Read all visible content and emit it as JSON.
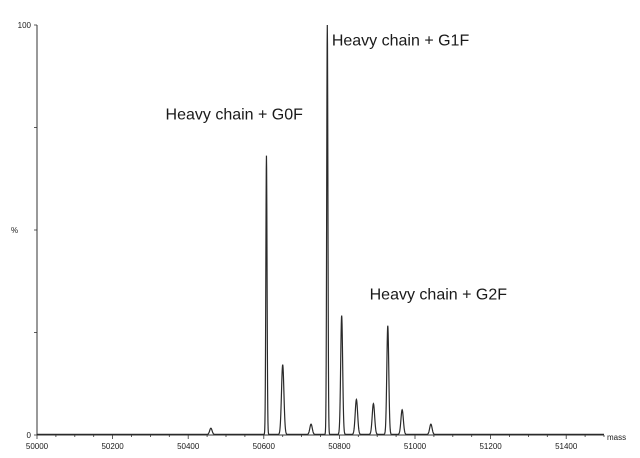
{
  "chart_data": {
    "type": "line",
    "xlabel": "mass",
    "ylabel": "%",
    "xlim": [
      50000,
      51500
    ],
    "ylim": [
      0,
      100
    ],
    "x_ticks": [
      "50000",
      "50200",
      "50400",
      "50600",
      "50800",
      "51000",
      "51200",
      "51400"
    ],
    "y_ticks": [
      "0",
      "100"
    ],
    "grid": false,
    "line_color": "#2a2a2a",
    "series": [
      {
        "x": [
          50460,
          50607,
          50650,
          50725,
          50768,
          50806,
          50845,
          50890,
          50928,
          50966,
          51042
        ],
        "values": [
          1.5,
          68,
          17,
          2.5,
          100,
          29,
          8.5,
          7.5,
          26.5,
          6,
          2.5
        ]
      }
    ],
    "annotations": [
      {
        "text": "Heavy chain + G0F",
        "x": 50340,
        "y": 77
      },
      {
        "text": "Heavy chain + G1F",
        "x": 50780,
        "y": 95
      },
      {
        "text": "Heavy chain + G2F",
        "x": 50880,
        "y": 33
      }
    ]
  }
}
